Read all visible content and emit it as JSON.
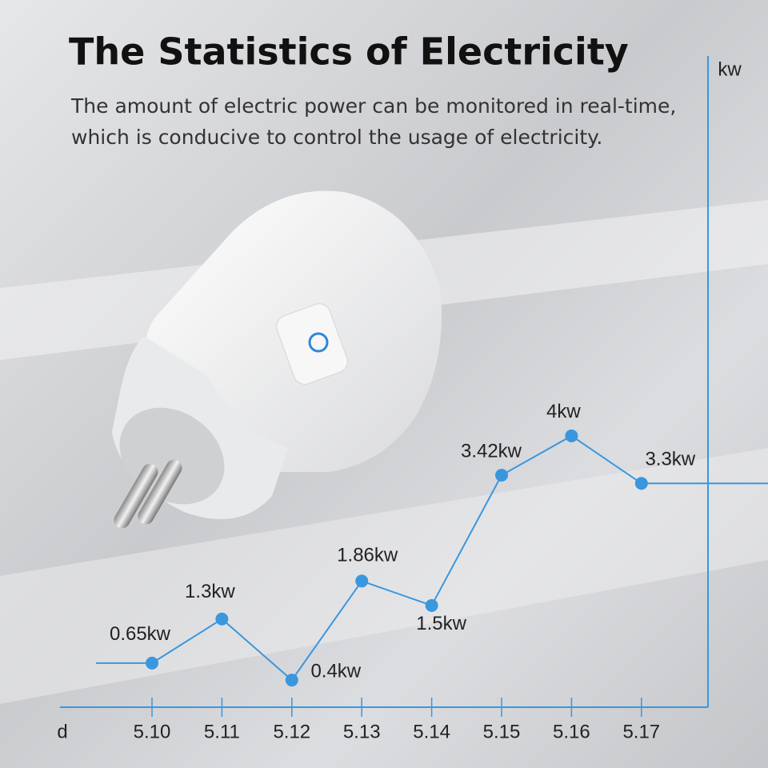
{
  "chart_data": {
    "type": "line",
    "title": "The Statistics of Electricity",
    "subtitle": [
      "The amount of electric power can be monitored in real-time,",
      "which is conducive to control the usage of electricity."
    ],
    "x_label": "d",
    "y_label": "kw",
    "categories": [
      "5.10",
      "5.11",
      "5.12",
      "5.13",
      "5.14",
      "5.15",
      "5.16",
      "5.17"
    ],
    "values": [
      0.65,
      1.3,
      0.4,
      1.86,
      1.5,
      3.42,
      4,
      3.3
    ],
    "value_labels": [
      "0.65kw",
      "1.3kw",
      "0.4kw",
      "1.86kw",
      "1.5kw",
      "3.42kw",
      "4kw",
      "3.3kw"
    ],
    "color": "#3a97dd",
    "ylim": [
      0,
      9.6
    ]
  }
}
